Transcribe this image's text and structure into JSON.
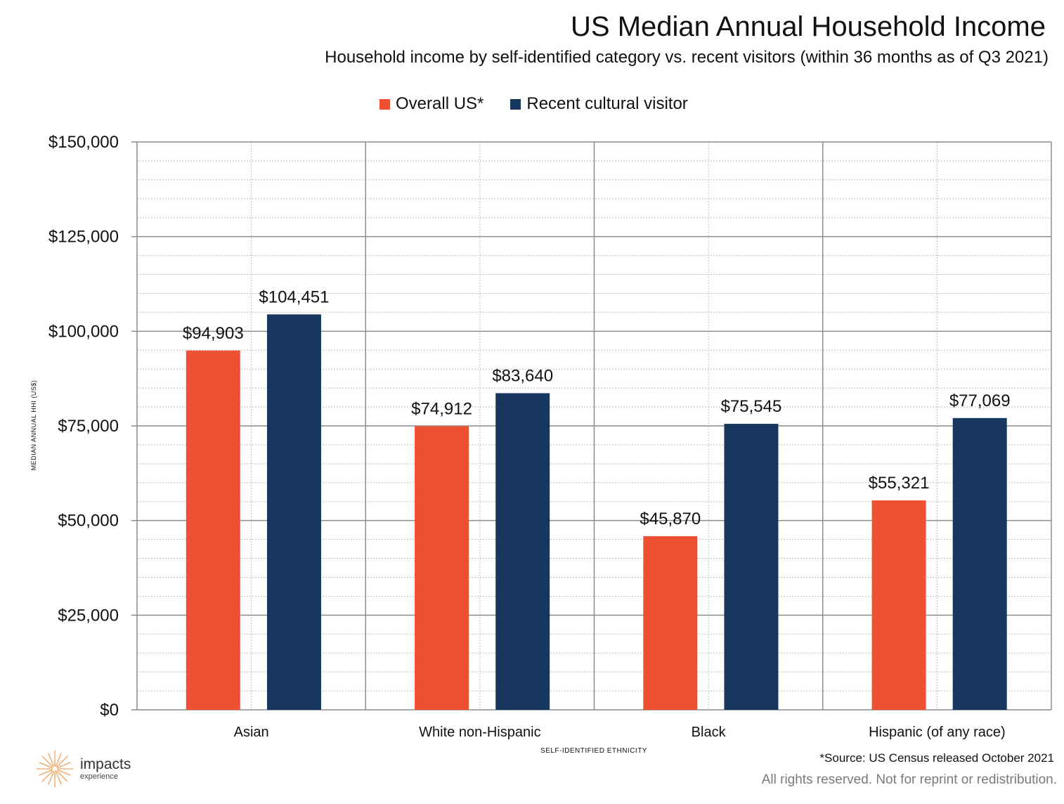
{
  "title": "US Median Annual Household Income",
  "subtitle": "Household income by self-identified category vs. recent visitors (within 36 months as of Q3 2021)",
  "source_note": "*Source: US Census released October 2021",
  "rights_note": "All rights reserved. Not for reprint or redistribution.",
  "logo": {
    "word": "impacts",
    "sub": "experience",
    "icon": "sunburst-icon",
    "color": "#f2a25c"
  },
  "colors": {
    "overall": "#ef4f33",
    "visitor": "#17375e",
    "major_grid": "#8c8c8c",
    "minor_grid": "#bdbdbd"
  },
  "chart_data": {
    "type": "bar",
    "title": "US Median Annual Household Income",
    "subtitle": "Household income by self-identified category vs. recent visitors (within 36 months as of Q3 2021)",
    "xlabel": "SELF-IDENTIFIED ETHNICITY",
    "ylabel": "MEDIAN ANNUAL HHI (US$)",
    "categories": [
      "Asian",
      "White non-Hispanic",
      "Black",
      "Hispanic (of any race)"
    ],
    "series": [
      {
        "name": "Overall US*",
        "values": [
          94903,
          74912,
          45870,
          55321
        ],
        "labels": [
          "$94,903",
          "$74,912",
          "$45,870",
          "$55,321"
        ]
      },
      {
        "name": "Recent cultural visitor",
        "values": [
          104451,
          83640,
          75545,
          77069
        ],
        "labels": [
          "$104,451",
          "$83,640",
          "$75,545",
          "$77,069"
        ]
      }
    ],
    "ylim": [
      0,
      150000
    ],
    "yticks": [
      0,
      25000,
      50000,
      75000,
      100000,
      125000,
      150000
    ],
    "ytick_labels": [
      "$0",
      "$25,000",
      "$50,000",
      "$75,000",
      "$100,000",
      "$125,000",
      "$150,000"
    ],
    "legend": "top-center",
    "grid": true
  }
}
